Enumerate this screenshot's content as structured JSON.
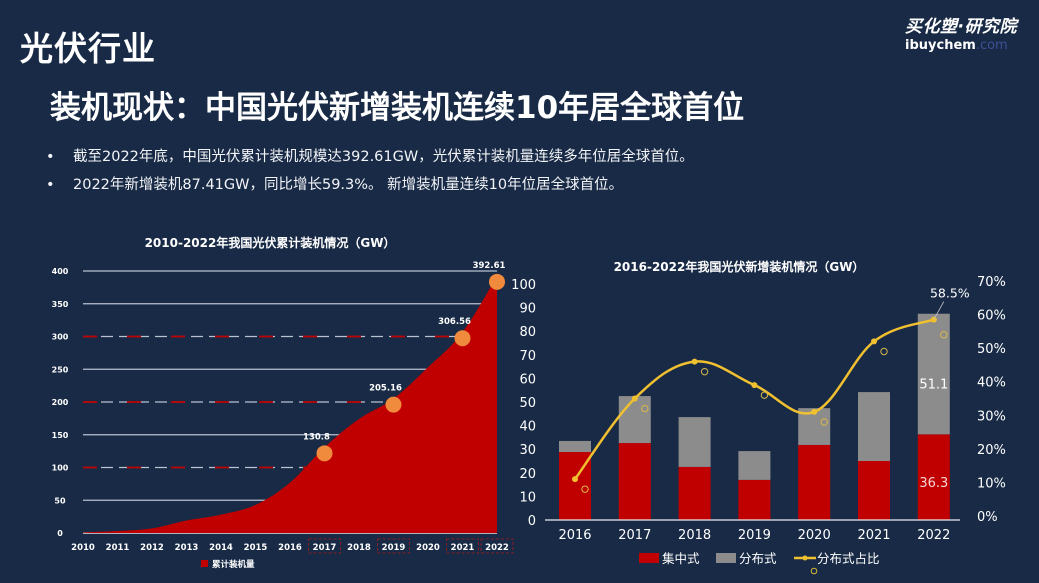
{
  "header": {
    "section_title": "光伏行业",
    "headline": "装机现状：中国光伏新增装机连续10年居全球首位",
    "bullets": [
      "截至2022年底，中国光伏累计装机规模达392.61GW，光伏累计装机量连续多年位居全球首位。",
      "2022年新增装机87.41GW，同比增长59.3%。 新增装机量连续10年位居全球首位。"
    ],
    "bullet_glyph": "•"
  },
  "logo": {
    "cn": "买化塑·研究院",
    "en_main": "ibuychem",
    "en_domain": ".com"
  },
  "colors": {
    "background": "#182a45",
    "red": "#c00000",
    "gray": "#8c8c8c",
    "gold": "#f0c030",
    "orange_dot": "#f08a3c",
    "grid": "#b8c2d2"
  },
  "chart_data": [
    {
      "type": "area",
      "title": "2010-2022年我国光伏累计装机情况（GW）",
      "categories": [
        "2010",
        "2011",
        "2012",
        "2013",
        "2014",
        "2015",
        "2016",
        "2017",
        "2018",
        "2019",
        "2020",
        "2021",
        "2022"
      ],
      "series": [
        {
          "name": "累计装机量",
          "values": [
            0.9,
            3.0,
            7.0,
            19.0,
            28.0,
            43.0,
            77.0,
            130.8,
            174.0,
            205.16,
            253.0,
            306.56,
            392.61
          ]
        }
      ],
      "highlighted_points": [
        {
          "category": "2017",
          "label": "130.8"
        },
        {
          "category": "2019",
          "label": "205.16"
        },
        {
          "category": "2021",
          "label": "306.56"
        },
        {
          "category": "2022",
          "label": "392.61"
        }
      ],
      "yticks": [
        "0",
        "50",
        "100",
        "150",
        "200",
        "250",
        "300",
        "350",
        "400"
      ],
      "ylim": [
        0,
        400
      ],
      "xlabel": "",
      "ylabel": "",
      "grid": true,
      "legend": {
        "position": "bottom",
        "entries": [
          "累计装机量"
        ]
      }
    },
    {
      "type": "bar",
      "stacked": true,
      "title": "2016-2022年我国光伏新增装机情况（GW）",
      "categories": [
        "2016",
        "2017",
        "2018",
        "2019",
        "2020",
        "2021",
        "2022"
      ],
      "series": [
        {
          "name": "集中式",
          "values": [
            28.8,
            32.6,
            22.5,
            17.0,
            31.8,
            25.0,
            36.3
          ]
        },
        {
          "name": "分布式",
          "values": [
            4.7,
            19.9,
            21.1,
            12.2,
            15.6,
            29.2,
            51.1
          ]
        }
      ],
      "line_series": {
        "name": "分布式占比",
        "axis": "right",
        "values": [
          11,
          35,
          46,
          39,
          31,
          52,
          58.5
        ],
        "marker_values": [
          8,
          32,
          43,
          36,
          28,
          49,
          54
        ]
      },
      "data_labels": [
        {
          "series": "集中式",
          "category": "2022",
          "label": "36.3"
        },
        {
          "series": "分布式",
          "category": "2022",
          "label": "51.1"
        },
        {
          "series": "分布式占比",
          "category": "2022",
          "label": "58.5%"
        }
      ],
      "yticks": [
        "0",
        "10",
        "20",
        "30",
        "40",
        "50",
        "60",
        "70",
        "80",
        "90",
        "100"
      ],
      "ylim": [
        0,
        100
      ],
      "y2ticks": [
        "0%",
        "10%",
        "20%",
        "30%",
        "40%",
        "50%",
        "60%",
        "70%"
      ],
      "y2lim": [
        0,
        70
      ],
      "grid": false,
      "legend": {
        "position": "bottom",
        "entries": [
          "集中式",
          "分布式",
          "分布式占比"
        ]
      }
    }
  ]
}
